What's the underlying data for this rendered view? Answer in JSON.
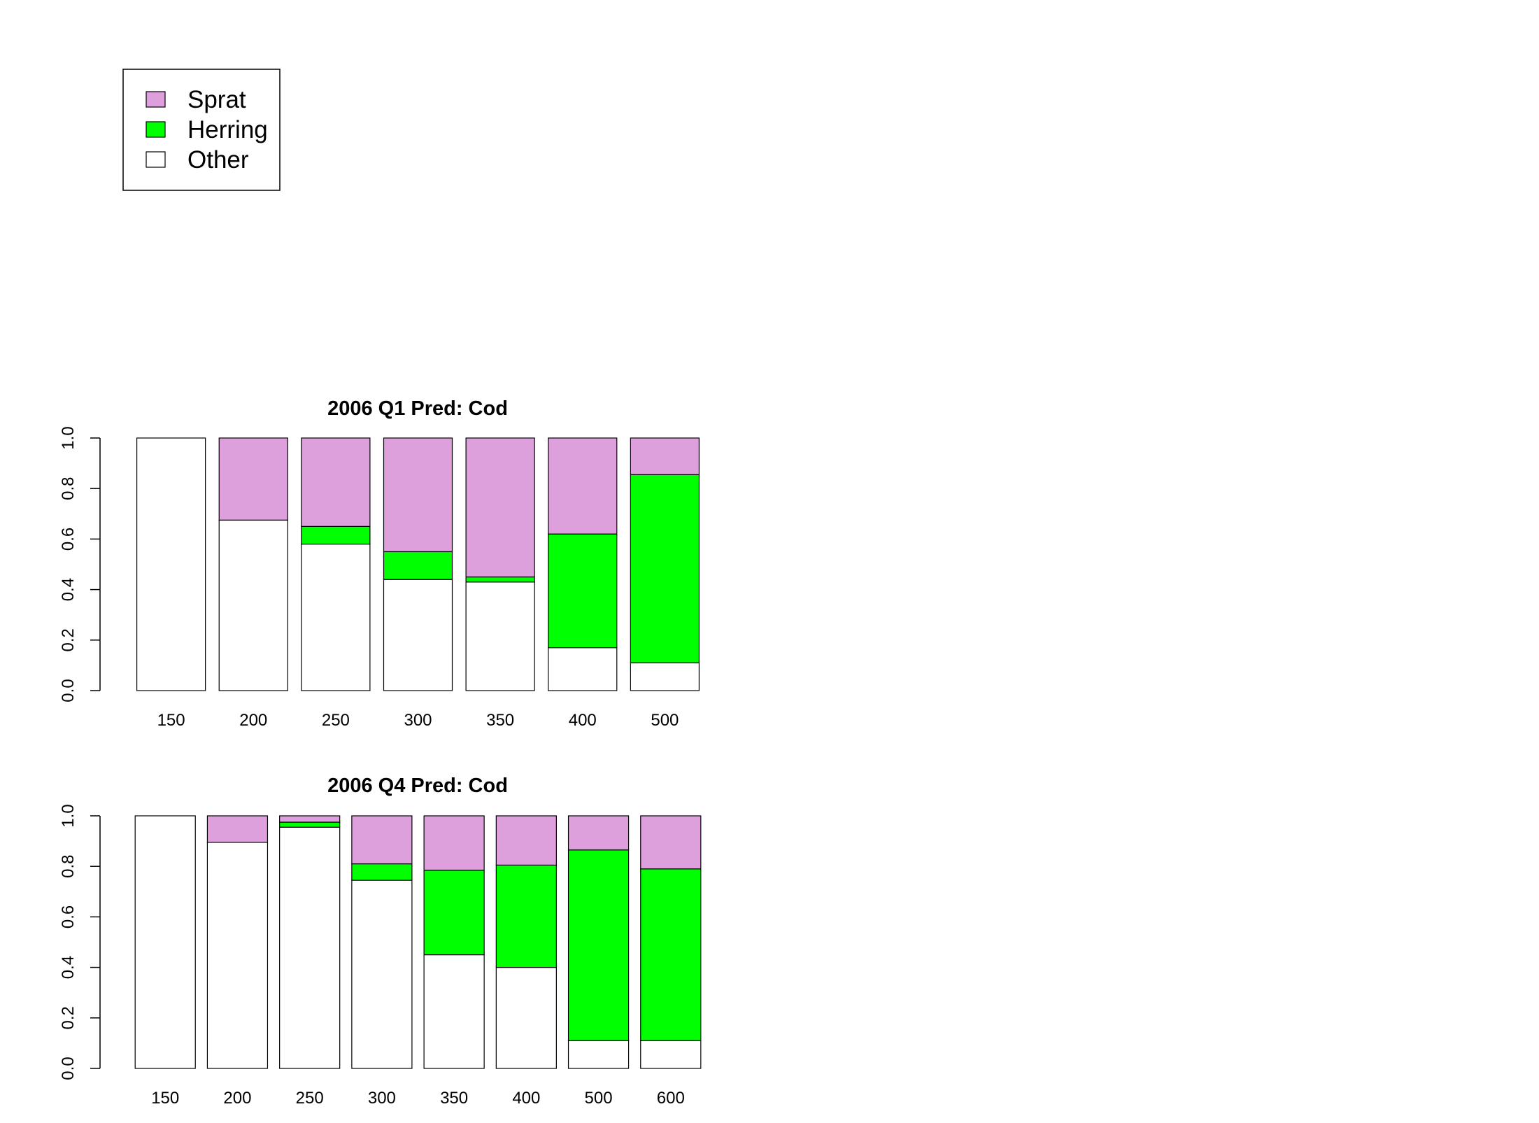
{
  "colors": {
    "sprat": "#DDA0DD",
    "herring": "#00FF00",
    "other": "#FFFFFF",
    "stroke": "#000000"
  },
  "legend": {
    "items": [
      {
        "label": "Sprat",
        "color": "#DDA0DD"
      },
      {
        "label": "Herring",
        "color": "#00FF00"
      },
      {
        "label": "Other",
        "color": "#FFFFFF"
      }
    ]
  },
  "chart_data": [
    {
      "type": "bar",
      "stacked": true,
      "title": "2006 Q1  Pred: Cod",
      "xlabel": "",
      "ylabel": "",
      "ylim": [
        0,
        1
      ],
      "yticks": [
        "0.0",
        "0.2",
        "0.4",
        "0.6",
        "0.8",
        "1.0"
      ],
      "categories": [
        "150",
        "200",
        "250",
        "300",
        "350",
        "400",
        "500"
      ],
      "series": [
        {
          "name": "Other",
          "color": "#FFFFFF",
          "values": [
            1.0,
            0.675,
            0.58,
            0.44,
            0.43,
            0.17,
            0.11
          ]
        },
        {
          "name": "Herring",
          "color": "#00FF00",
          "values": [
            0.0,
            0.0,
            0.07,
            0.11,
            0.02,
            0.45,
            0.745
          ]
        },
        {
          "name": "Sprat",
          "color": "#DDA0DD",
          "values": [
            0.0,
            0.325,
            0.35,
            0.45,
            0.55,
            0.38,
            0.145
          ]
        }
      ]
    },
    {
      "type": "bar",
      "stacked": true,
      "title": "2006 Q4  Pred: Cod",
      "xlabel": "",
      "ylabel": "",
      "ylim": [
        0,
        1
      ],
      "yticks": [
        "0.0",
        "0.2",
        "0.4",
        "0.6",
        "0.8",
        "1.0"
      ],
      "categories": [
        "150",
        "200",
        "250",
        "300",
        "350",
        "400",
        "500",
        "600"
      ],
      "series": [
        {
          "name": "Other",
          "color": "#FFFFFF",
          "values": [
            1.0,
            0.895,
            0.955,
            0.745,
            0.45,
            0.4,
            0.11,
            0.11
          ]
        },
        {
          "name": "Herring",
          "color": "#00FF00",
          "values": [
            0.0,
            0.0,
            0.02,
            0.065,
            0.335,
            0.405,
            0.755,
            0.68
          ]
        },
        {
          "name": "Sprat",
          "color": "#DDA0DD",
          "values": [
            0.0,
            0.105,
            0.025,
            0.19,
            0.215,
            0.195,
            0.135,
            0.21
          ]
        }
      ]
    }
  ]
}
